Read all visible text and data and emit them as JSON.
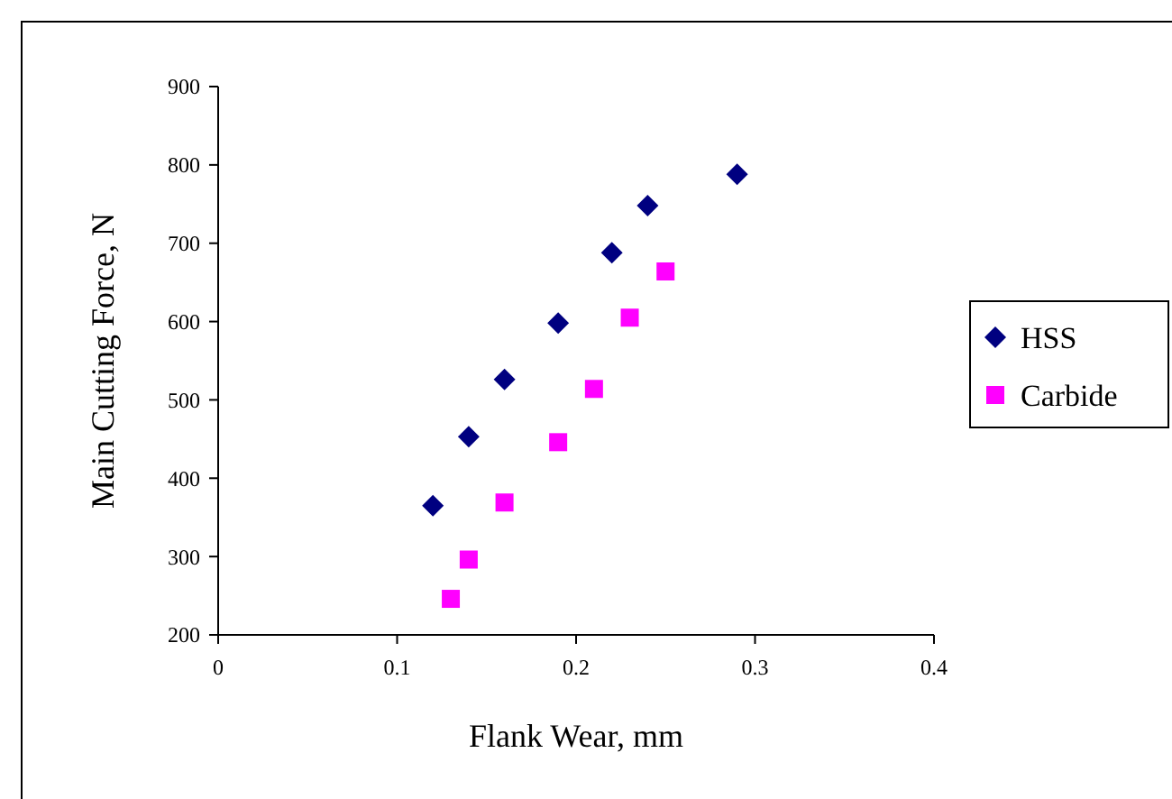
{
  "chart_data": {
    "type": "scatter",
    "xlabel": "Flank Wear, mm",
    "ylabel": "Main Cutting Force, N",
    "xlim": [
      0,
      0.4
    ],
    "xticks": [
      0,
      0.1,
      0.2,
      0.3,
      0.4
    ],
    "ylim": [
      200,
      900
    ],
    "yticks": [
      200,
      300,
      400,
      500,
      600,
      700,
      800,
      900
    ],
    "grid": false,
    "legend": "right",
    "series": [
      {
        "name": "HSS",
        "color": "#000080",
        "marker": "diamond",
        "x": [
          0.12,
          0.14,
          0.16,
          0.19,
          0.22,
          0.24,
          0.29
        ],
        "values": [
          365,
          453,
          526,
          598,
          688,
          748,
          788
        ]
      },
      {
        "name": "Carbide",
        "color": "#ff00ff",
        "marker": "square",
        "x": [
          0.13,
          0.14,
          0.16,
          0.19,
          0.21,
          0.23,
          0.25
        ],
        "values": [
          246,
          296,
          369,
          446,
          514,
          605,
          664
        ]
      }
    ]
  }
}
